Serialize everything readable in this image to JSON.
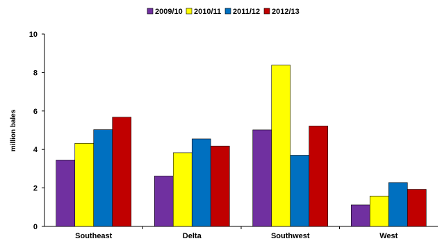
{
  "chart_data": {
    "type": "bar",
    "categories": [
      "Southeast",
      "Delta",
      "Southwest",
      "West"
    ],
    "series": [
      {
        "name": "2009/10",
        "color": "#7030A0",
        "values": [
          3.45,
          2.62,
          5.02,
          1.12
        ]
      },
      {
        "name": "2010/11",
        "color": "#FFFF00",
        "values": [
          4.32,
          3.83,
          8.38,
          1.58
        ]
      },
      {
        "name": "2011/12",
        "color": "#0070C0",
        "values": [
          5.03,
          4.55,
          3.7,
          2.28
        ]
      },
      {
        "name": "2012/13",
        "color": "#C00000",
        "values": [
          5.68,
          4.18,
          5.22,
          1.93
        ]
      }
    ],
    "xlabel": "",
    "ylabel": "million bales",
    "ylim": [
      0,
      10
    ],
    "yticks": [
      "0",
      "2",
      "4",
      "6",
      "8",
      "10"
    ],
    "grid": false,
    "legend_position": "top-center"
  }
}
